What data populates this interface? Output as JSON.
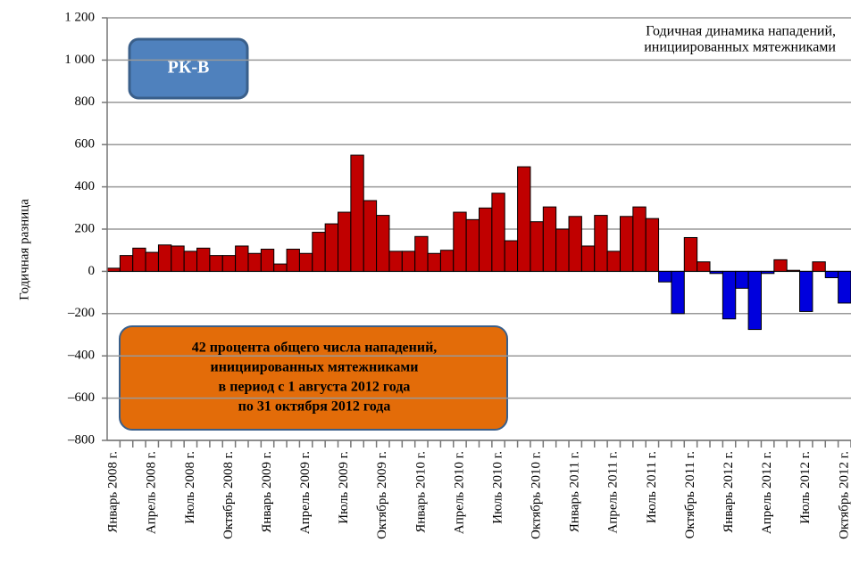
{
  "chart_data": {
    "type": "bar",
    "title": [
      "Годичная динамика нападений,",
      "инициированных мятежниками"
    ],
    "ylabel": "Годичная разница",
    "badge": "РК-В",
    "annotation": [
      "42 процента общего числа нападений,",
      "инициированных мятежниками",
      "в период с 1 августа 2012 года",
      "по 31 октября 2012 года"
    ],
    "categories": [
      "Январь 2008 г.",
      null,
      null,
      "Апрель 2008 г.",
      null,
      null,
      "Июль 2008 г.",
      null,
      null,
      "Октябрь 2008 г.",
      null,
      null,
      "Январь 2009 г.",
      null,
      null,
      "Апрель 2009 г.",
      null,
      null,
      "Июль 2009 г.",
      null,
      null,
      "Октябрь 2009 г.",
      null,
      null,
      "Январь 2010 г.",
      null,
      null,
      "Апрель 2010 г.",
      null,
      null,
      "Июль 2010 г.",
      null,
      null,
      "Октябрь 2010 г.",
      null,
      null,
      "Январь 2011 г.",
      null,
      null,
      "Апрель 2011 г.",
      null,
      null,
      "Июль 2011 г.",
      null,
      null,
      "Октябрь 2011 г.",
      null,
      null,
      "Январь 2012 г.",
      null,
      null,
      "Апрель 2012 г.",
      null,
      null,
      "Июль 2012 г.",
      null,
      null,
      "Октябрь 2012 г."
    ],
    "values": [
      15,
      75,
      110,
      90,
      125,
      120,
      95,
      110,
      75,
      75,
      120,
      85,
      105,
      35,
      105,
      85,
      185,
      225,
      280,
      550,
      335,
      265,
      95,
      95,
      165,
      85,
      100,
      280,
      245,
      300,
      370,
      145,
      495,
      235,
      305,
      200,
      260,
      120,
      265,
      95,
      260,
      305,
      250,
      -50,
      -200,
      160,
      45,
      -10,
      -225,
      -80,
      -275,
      -10,
      55,
      5,
      -190,
      45,
      -30,
      -150
    ],
    "color": "#c00000",
    "negative_color": "#0000dd",
    "ylim": [
      -800,
      1200
    ],
    "yticks": [
      {
        "value": -800,
        "label": "–800"
      },
      {
        "value": -600,
        "label": "–600"
      },
      {
        "value": -400,
        "label": "–400"
      },
      {
        "value": -200,
        "label": "–200"
      },
      0,
      200,
      400,
      600,
      800,
      {
        "value": 1000,
        "label": "1 000"
      },
      {
        "value": 1200,
        "label": "1 200"
      }
    ],
    "grid": true
  }
}
